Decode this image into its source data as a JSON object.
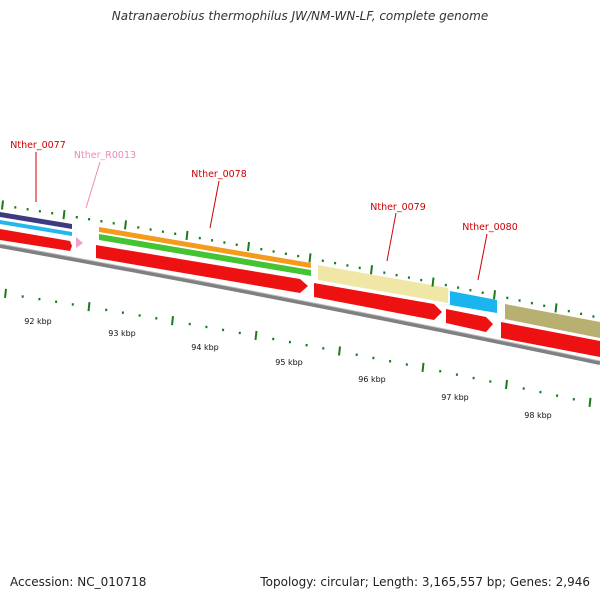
{
  "title": "Natranaerobius thermophilus JW/NM-WN-LF, complete genome",
  "accession": "Accession: NC_010718",
  "stats": "Topology: circular; Length: 3,165,557 bp; Genes: 2,946",
  "colors": {
    "cds": "#ff0000",
    "rna_label": "#ee88bb",
    "cds_label": "#cc0000",
    "tick": "#1a7a1a",
    "backbone": "#888888"
  },
  "genes": [
    {
      "name": "Nther_0077",
      "color": "#cc0000"
    },
    {
      "name": "Nther_R0013",
      "color": "#ee88bb"
    },
    {
      "name": "Nther_0078",
      "color": "#cc0000"
    },
    {
      "name": "Nther_0079",
      "color": "#cc0000"
    },
    {
      "name": "Nther_0080",
      "color": "#cc0000"
    }
  ],
  "scale_labels": [
    "92 kbp",
    "93 kbp",
    "94 kbp",
    "95 kbp",
    "96 kbp",
    "97 kbp",
    "98 kbp"
  ]
}
